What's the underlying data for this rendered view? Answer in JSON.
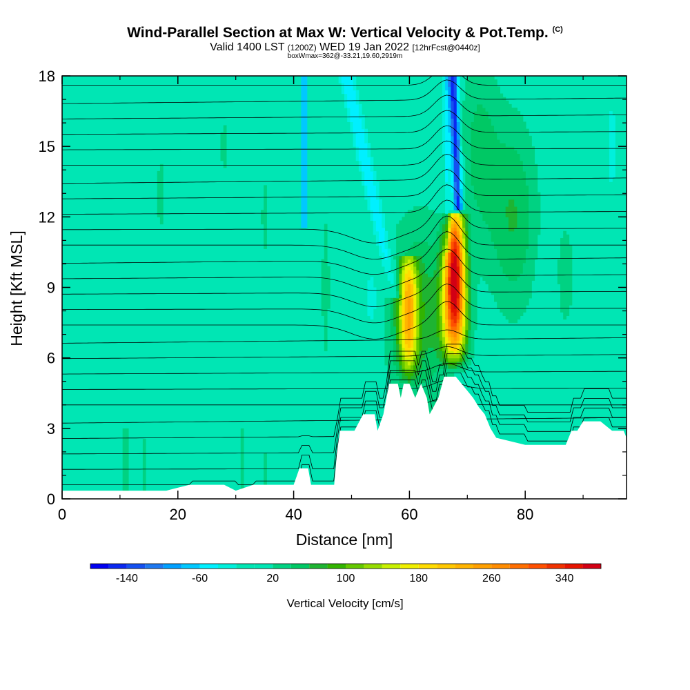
{
  "header": {
    "title": "Wind-Parallel Section at Max W: Vertical Velocity & Pot.Temp.",
    "copyright": "(C)",
    "valid_prefix": "Valid 1400 LST",
    "valid_utc": "(1200Z)",
    "valid_date": "WED 19 Jan 2022",
    "forecast": "[12hrFcst@0440z]",
    "box_info": "boxWmax=362@-33.21,19.60,2919m"
  },
  "chart_data": {
    "type": "heatmap",
    "xlabel": "Distance [nm]",
    "ylabel": "Height [Kft MSL]",
    "xlim": [
      0,
      97.5
    ],
    "ylim": [
      0,
      18
    ],
    "x_ticks": [
      0,
      20,
      40,
      60,
      80
    ],
    "y_ticks": [
      0,
      3,
      6,
      9,
      12,
      15,
      18
    ],
    "colorbar": {
      "title": "Vertical Velocity [cm/s]",
      "tick_labels": [
        "-140",
        "-60",
        "20",
        "100",
        "180",
        "260",
        "340"
      ],
      "tick_values": [
        -140,
        -60,
        20,
        100,
        180,
        260,
        340
      ],
      "levels": [
        -180,
        -160,
        -140,
        -120,
        -100,
        -80,
        -60,
        -40,
        -20,
        0,
        20,
        40,
        60,
        80,
        100,
        120,
        140,
        160,
        180,
        200,
        220,
        240,
        260,
        280,
        300,
        320,
        340,
        360,
        380
      ],
      "colors": [
        "#0000f0",
        "#0a28f0",
        "#1450f0",
        "#1e78f0",
        "#00a0ff",
        "#00c8ff",
        "#00f0ff",
        "#00f0dc",
        "#00e6b4",
        "#00e6b4",
        "#00d282",
        "#00c864",
        "#1eb432",
        "#32b400",
        "#64c800",
        "#96dc00",
        "#c8f000",
        "#f0f000",
        "#ffdc00",
        "#ffc800",
        "#ffb400",
        "#ffa000",
        "#ff8c00",
        "#ff6e00",
        "#ff5000",
        "#f03200",
        "#e61400",
        "#d20014"
      ]
    },
    "background_value": 0,
    "terrain_kft": [
      [
        0,
        0.35
      ],
      [
        7,
        0.35
      ],
      [
        18,
        0.35
      ],
      [
        22,
        0.6
      ],
      [
        28,
        0.6
      ],
      [
        30,
        0.35
      ],
      [
        33,
        0.6
      ],
      [
        40,
        0.6
      ],
      [
        41,
        1.3
      ],
      [
        42.5,
        1.3
      ],
      [
        43,
        0.6
      ],
      [
        47,
        0.6
      ],
      [
        47.5,
        2.0
      ],
      [
        48,
        2.9
      ],
      [
        50.5,
        2.9
      ],
      [
        52,
        3.6
      ],
      [
        54,
        3.6
      ],
      [
        54.5,
        2.9
      ],
      [
        55.5,
        3.6
      ],
      [
        56.5,
        4.9
      ],
      [
        58,
        4.9
      ],
      [
        58.5,
        4.3
      ],
      [
        59,
        4.9
      ],
      [
        60,
        4.9
      ],
      [
        61,
        4.3
      ],
      [
        62,
        4.9
      ],
      [
        63,
        4.3
      ],
      [
        63.5,
        3.6
      ],
      [
        65,
        4.3
      ],
      [
        66,
        5.2
      ],
      [
        68,
        5.2
      ],
      [
        69,
        4.9
      ],
      [
        70,
        4.6
      ],
      [
        71,
        4.3
      ],
      [
        72,
        3.9
      ],
      [
        73,
        3.6
      ],
      [
        74,
        3.0
      ],
      [
        75,
        2.6
      ],
      [
        80,
        2.3
      ],
      [
        87,
        2.3
      ],
      [
        88,
        2.9
      ],
      [
        89,
        2.9
      ],
      [
        90,
        3.3
      ],
      [
        93,
        3.3
      ],
      [
        95,
        2.9
      ],
      [
        97,
        2.9
      ],
      [
        97.5,
        2.6
      ]
    ],
    "updraft_cores": [
      {
        "x": 67.8,
        "top_kft": 12.2,
        "bottom_kft": 5.2,
        "max_cm_s": 362
      },
      {
        "x": 59.8,
        "top_kft": 10.4,
        "bottom_kft": 4.9,
        "max_cm_s": 190
      }
    ],
    "downdraft_bands": [
      {
        "x": 68.0,
        "min_cm_s": -160
      },
      {
        "x": 41.8,
        "min_cm_s": -80
      },
      {
        "x": 57.2,
        "min_cm_s": -60
      }
    ],
    "isentropes": "potential temperature contours"
  }
}
